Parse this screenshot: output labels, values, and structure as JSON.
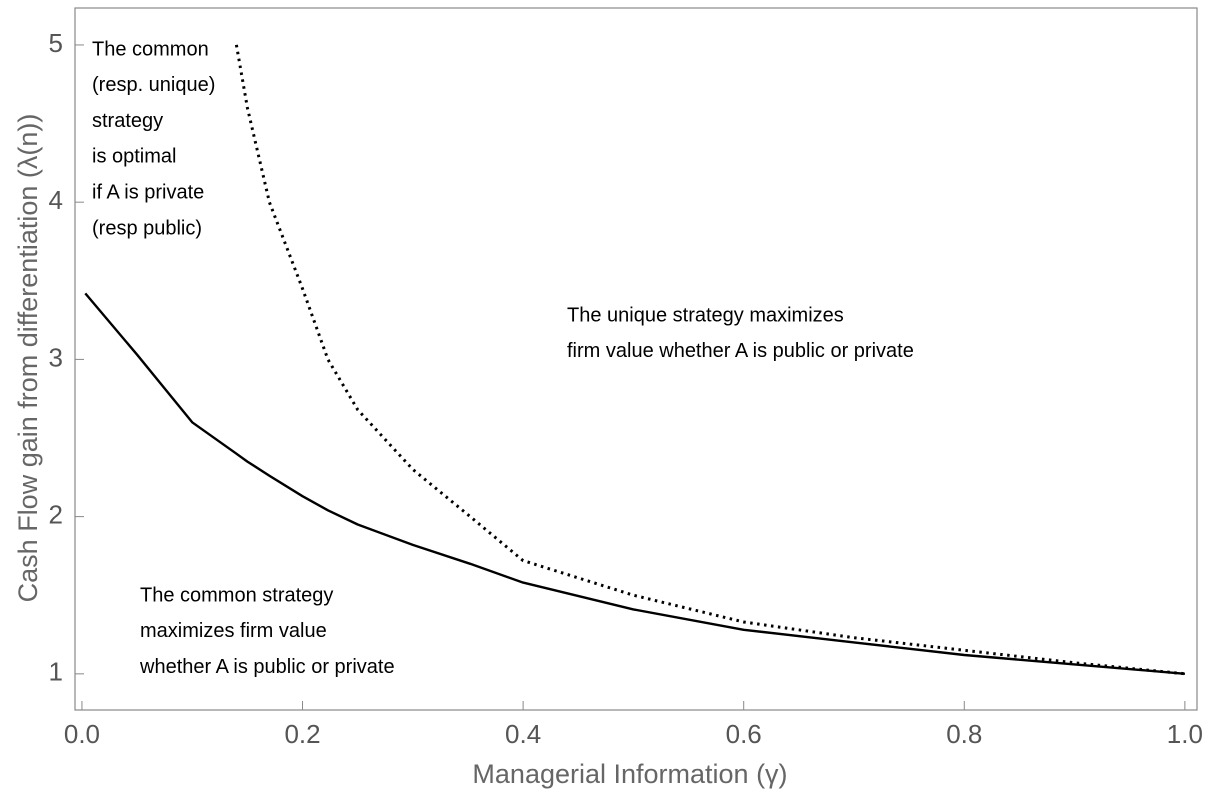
{
  "chart_data": {
    "type": "line",
    "xlabel": "Managerial Information (γ)",
    "ylabel": "Cash Flow gain from differentiation (λ(n))",
    "x": [
      0.003,
      0.05,
      0.1,
      0.14,
      0.15,
      0.17,
      0.2,
      0.223,
      0.25,
      0.3,
      0.352,
      0.4,
      0.5,
      0.6,
      0.7,
      0.8,
      0.9,
      1.0
    ],
    "series": [
      {
        "color": "#000000",
        "line_style": "solid",
        "values": [
          3.42,
          3.03,
          2.6,
          2.4,
          2.35,
          2.26,
          2.13,
          2.04,
          1.95,
          1.82,
          1.7,
          1.58,
          1.41,
          1.28,
          1.2,
          1.12,
          1.06,
          1.0
        ]
      },
      {
        "color": "#000000",
        "line_style": "dotted",
        "values": [
          null,
          null,
          null,
          5,
          4.6,
          4,
          3.45,
          3,
          2.68,
          2.3,
          2,
          1.72,
          1.5,
          1.33,
          1.23,
          1.15,
          1.07,
          1.0
        ]
      }
    ],
    "xlim": [
      -0.0063,
      1.011
    ],
    "ylim": [
      0.77,
      5.235
    ],
    "xticks": [
      {
        "value": 0,
        "label": "0.0"
      },
      0.2,
      0.4,
      0.6,
      0.8,
      {
        "value": 1,
        "label": "1.0"
      }
    ],
    "yticks": [
      1,
      2,
      3,
      4,
      5
    ],
    "grid": false,
    "annotations": [
      {
        "lines": [
          "The common",
          "(resp. unique)",
          "strategy",
          "is optimal",
          "if A is private",
          "(resp public)"
        ]
      },
      {
        "lines": [
          "The unique strategy maximizes",
          "firm value whether A is public or private"
        ]
      },
      {
        "lines": [
          "The common strategy",
          "maximizes firm value",
          "whether A is public or private"
        ]
      }
    ]
  }
}
